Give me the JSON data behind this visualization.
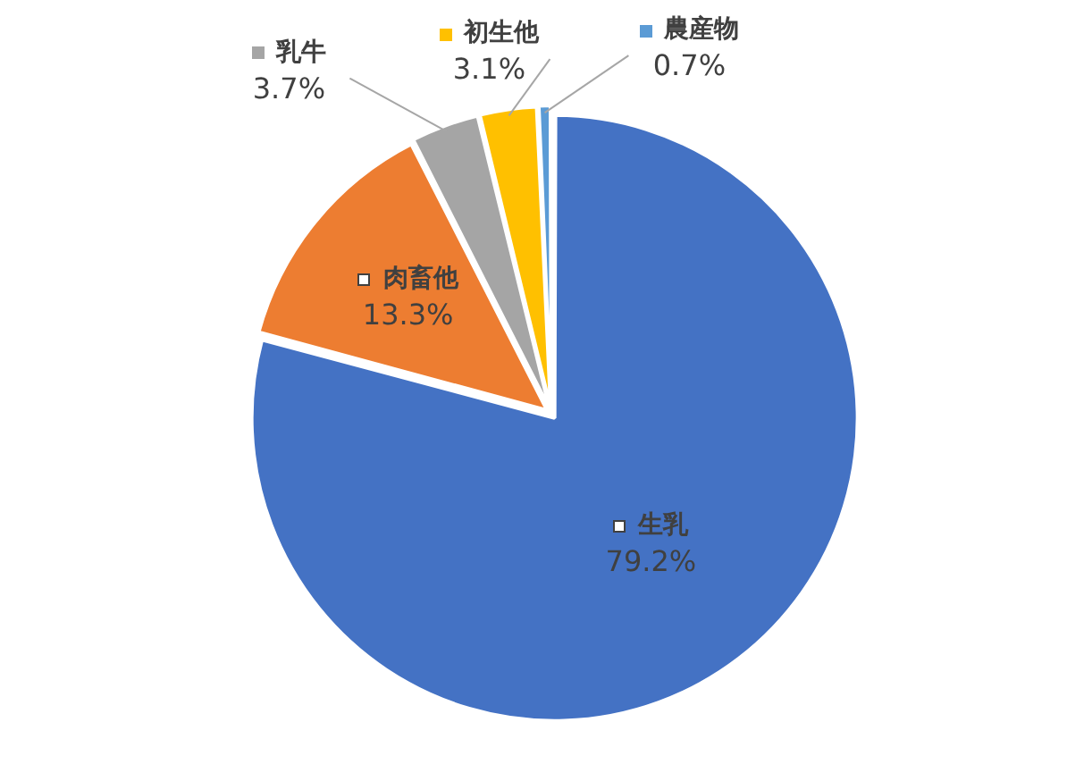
{
  "chart_data": {
    "type": "pie",
    "categories": [
      "生乳",
      "肉畜他",
      "乳牛",
      "初生他",
      "農産物"
    ],
    "values": [
      79.2,
      13.3,
      3.7,
      3.1,
      0.7
    ],
    "value_labels": [
      "79.2%",
      "13.3%",
      "3.7%",
      "3.1%",
      "0.7%"
    ],
    "colors": [
      "#4472c4",
      "#ed7d31",
      "#a5a5a5",
      "#ffc000",
      "#5b9bd5"
    ],
    "legend": "top"
  }
}
